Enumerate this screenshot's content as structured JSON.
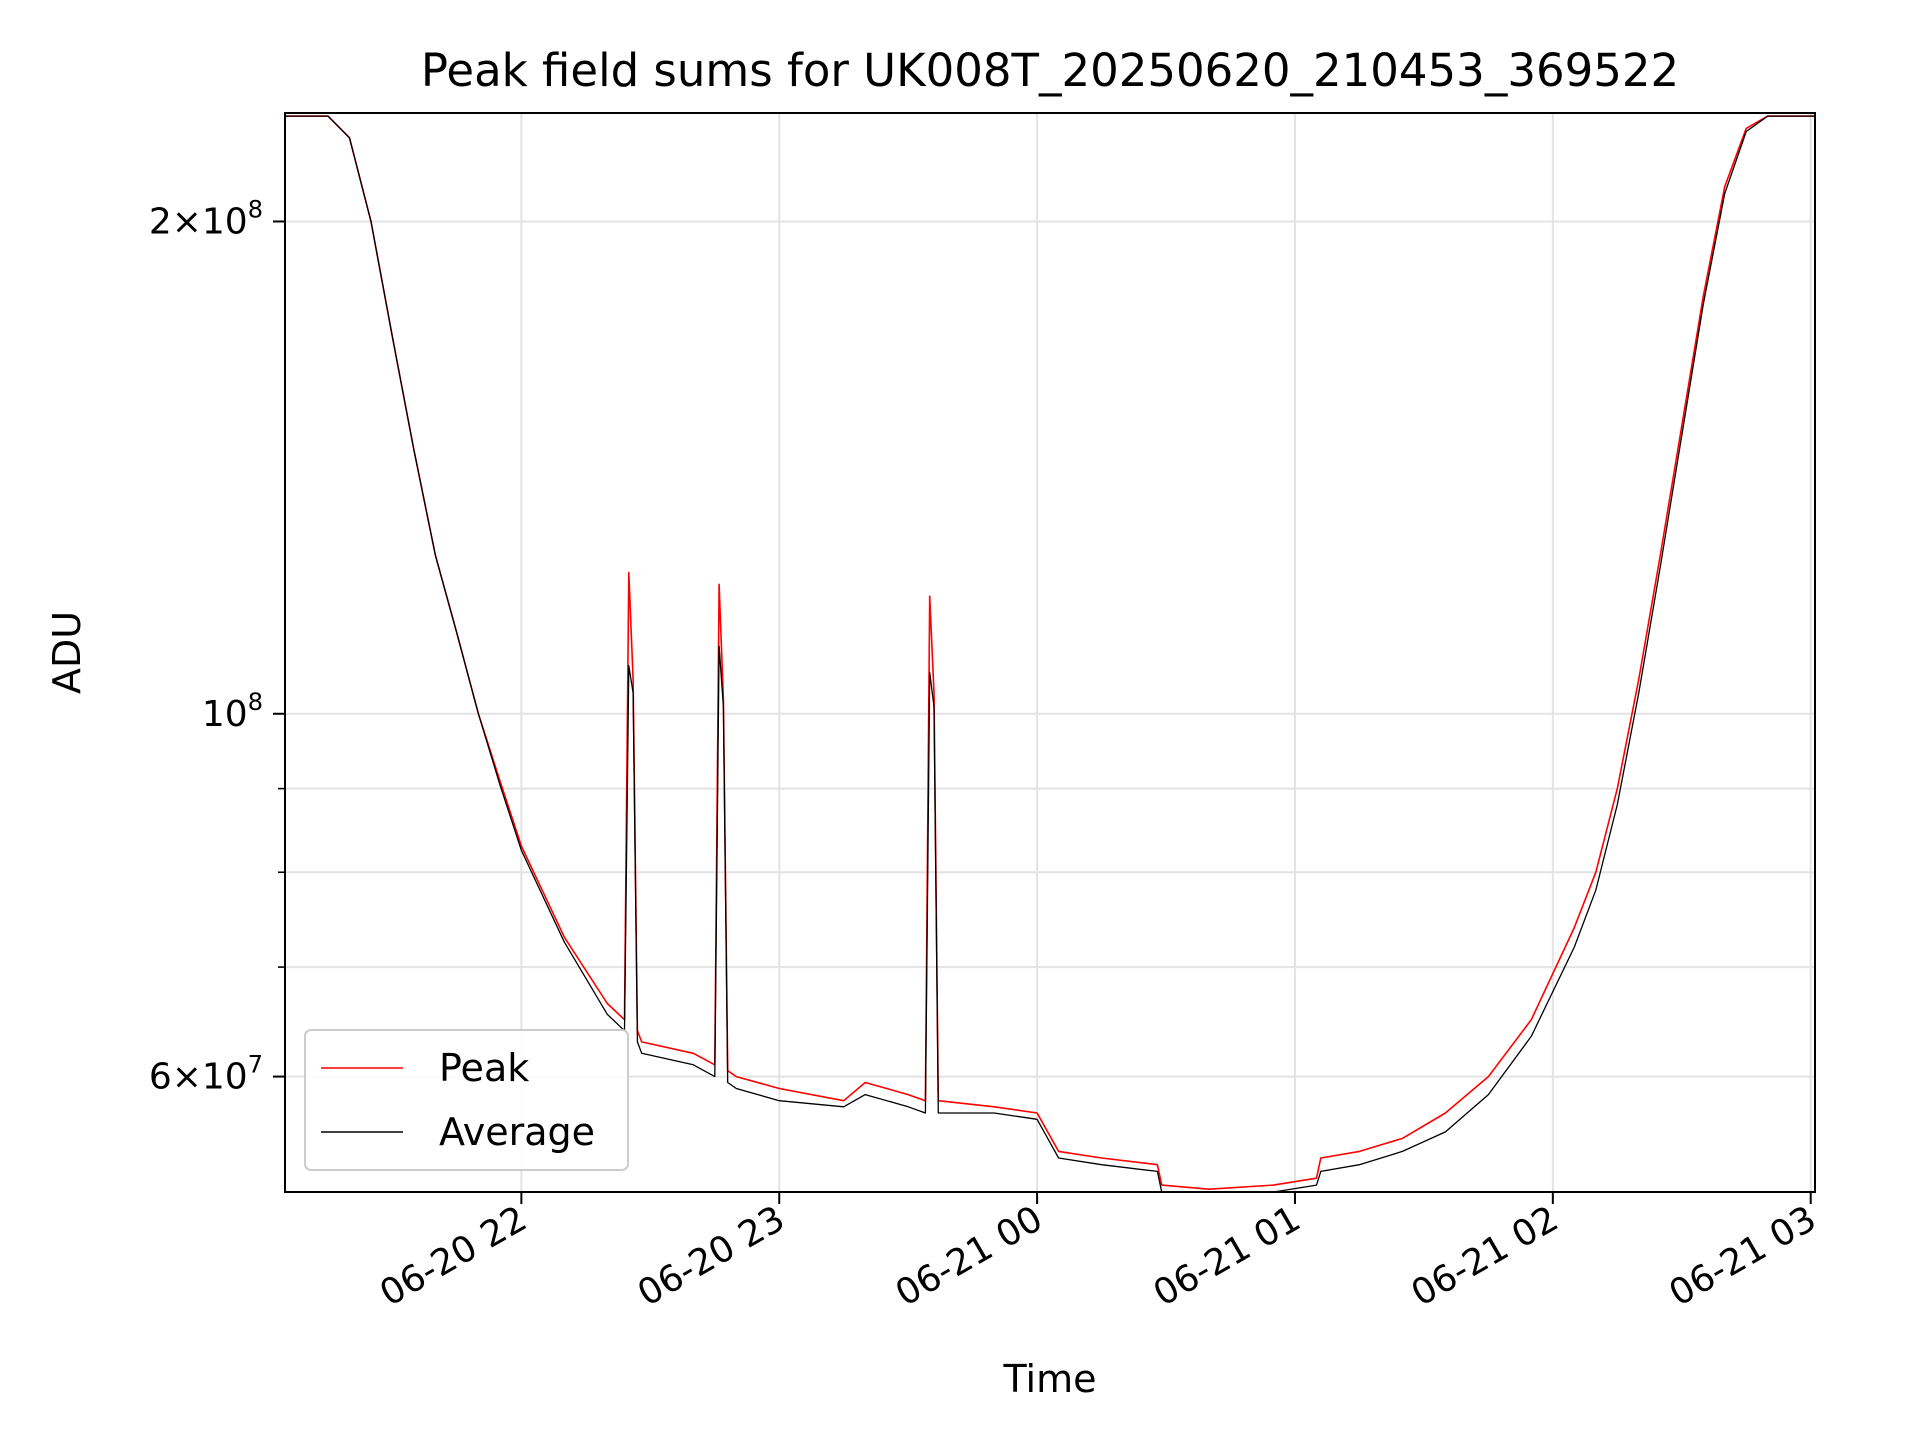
{
  "chart_data": {
    "type": "line",
    "title": "Peak field sums for UK008T_20250620_210453_369522",
    "xlabel": "Time",
    "ylabel": "ADU",
    "y_scale": "log",
    "grid": true,
    "legend_position": "lower-left",
    "xlim": [
      "2025-06-20 21:05",
      "2025-06-21 03:01"
    ],
    "ylim": [
      51000000,
      233000000
    ],
    "x_ticks": [
      "06-20 22",
      "06-20 23",
      "06-21 00",
      "06-21 01",
      "06-21 02",
      "06-21 03"
    ],
    "y_ticks": [
      {
        "value": 200000000,
        "base": "2×10",
        "exp": "8"
      },
      {
        "value": 100000000,
        "base": "10",
        "exp": "8"
      },
      {
        "value": 60000000,
        "base": "6×10",
        "exp": "7"
      }
    ],
    "y_minor_ticks": [
      70000000,
      80000000,
      90000000
    ],
    "series": [
      {
        "name": "Peak",
        "color": "#ff0000",
        "x": [
          "2025-06-20 21:05",
          "2025-06-20 21:15",
          "2025-06-20 21:20",
          "2025-06-20 21:25",
          "2025-06-20 21:30",
          "2025-06-20 21:35",
          "2025-06-20 21:40",
          "2025-06-20 21:45",
          "2025-06-20 21:50",
          "2025-06-20 21:55",
          "2025-06-20 22:00",
          "2025-06-20 22:10",
          "2025-06-20 22:20",
          "2025-06-20 22:24",
          "2025-06-20 22:25",
          "2025-06-20 22:26",
          "2025-06-20 22:27",
          "2025-06-20 22:28",
          "2025-06-20 22:40",
          "2025-06-20 22:45",
          "2025-06-20 22:46",
          "2025-06-20 22:47",
          "2025-06-20 22:48",
          "2025-06-20 22:50",
          "2025-06-20 23:00",
          "2025-06-20 23:15",
          "2025-06-20 23:20",
          "2025-06-20 23:30",
          "2025-06-20 23:34",
          "2025-06-20 23:35",
          "2025-06-20 23:36",
          "2025-06-20 23:37",
          "2025-06-20 23:50",
          "2025-06-21 00:00",
          "2025-06-21 00:05",
          "2025-06-21 00:15",
          "2025-06-21 00:28",
          "2025-06-21 00:29",
          "2025-06-21 00:40",
          "2025-06-21 00:55",
          "2025-06-21 01:05",
          "2025-06-21 01:06",
          "2025-06-21 01:15",
          "2025-06-21 01:25",
          "2025-06-21 01:35",
          "2025-06-21 01:45",
          "2025-06-21 01:55",
          "2025-06-21 02:05",
          "2025-06-21 02:10",
          "2025-06-21 02:15",
          "2025-06-21 02:20",
          "2025-06-21 02:25",
          "2025-06-21 02:30",
          "2025-06-21 02:35",
          "2025-06-21 02:40",
          "2025-06-21 02:45",
          "2025-06-21 02:50",
          "2025-06-21 03:01"
        ],
        "values": [
          232000000,
          232000000,
          225000000,
          200000000,
          170000000,
          145000000,
          125000000,
          112000000,
          100000000,
          91000000,
          83000000,
          73000000,
          66500000,
          65000000,
          122000000,
          105000000,
          64000000,
          63000000,
          62000000,
          61000000,
          120000000,
          102000000,
          60500000,
          60000000,
          59000000,
          58000000,
          59500000,
          58500000,
          58000000,
          118000000,
          103000000,
          58000000,
          57500000,
          57000000,
          54000000,
          53500000,
          53000000,
          51500000,
          51200000,
          51500000,
          52000000,
          53500000,
          54000000,
          55000000,
          57000000,
          60000000,
          65000000,
          74000000,
          80000000,
          90000000,
          105000000,
          125000000,
          150000000,
          180000000,
          210000000,
          228000000,
          232000000,
          232000000
        ]
      },
      {
        "name": "Average",
        "color": "#000000",
        "x": [
          "2025-06-20 21:05",
          "2025-06-20 21:15",
          "2025-06-20 21:20",
          "2025-06-20 21:25",
          "2025-06-20 21:30",
          "2025-06-20 21:35",
          "2025-06-20 21:40",
          "2025-06-20 21:45",
          "2025-06-20 21:50",
          "2025-06-20 21:55",
          "2025-06-20 22:00",
          "2025-06-20 22:10",
          "2025-06-20 22:20",
          "2025-06-20 22:24",
          "2025-06-20 22:25",
          "2025-06-20 22:26",
          "2025-06-20 22:27",
          "2025-06-20 22:28",
          "2025-06-20 22:40",
          "2025-06-20 22:45",
          "2025-06-20 22:46",
          "2025-06-20 22:47",
          "2025-06-20 22:48",
          "2025-06-20 22:50",
          "2025-06-20 23:00",
          "2025-06-20 23:15",
          "2025-06-20 23:20",
          "2025-06-20 23:30",
          "2025-06-20 23:34",
          "2025-06-20 23:35",
          "2025-06-20 23:36",
          "2025-06-20 23:37",
          "2025-06-20 23:50",
          "2025-06-21 00:00",
          "2025-06-21 00:05",
          "2025-06-21 00:15",
          "2025-06-21 00:28",
          "2025-06-21 00:29",
          "2025-06-21 00:40",
          "2025-06-21 00:55",
          "2025-06-21 01:05",
          "2025-06-21 01:06",
          "2025-06-21 01:15",
          "2025-06-21 01:25",
          "2025-06-21 01:35",
          "2025-06-21 01:45",
          "2025-06-21 01:55",
          "2025-06-21 02:05",
          "2025-06-21 02:10",
          "2025-06-21 02:15",
          "2025-06-21 02:20",
          "2025-06-21 02:25",
          "2025-06-21 02:30",
          "2025-06-21 02:35",
          "2025-06-21 02:40",
          "2025-06-21 02:45",
          "2025-06-21 02:50",
          "2025-06-21 03:01"
        ],
        "values": [
          232000000,
          232000000,
          225000000,
          200000000,
          170000000,
          145000000,
          125000000,
          112000000,
          100000000,
          90500000,
          82500000,
          72500000,
          65500000,
          64000000,
          107000000,
          103000000,
          63000000,
          62000000,
          61000000,
          60000000,
          110000000,
          101000000,
          59500000,
          59000000,
          58000000,
          57500000,
          58500000,
          57500000,
          57000000,
          106000000,
          101000000,
          57000000,
          57000000,
          56500000,
          53500000,
          53000000,
          52500000,
          51000000,
          50800000,
          51000000,
          51500000,
          52500000,
          53000000,
          54000000,
          55500000,
          58500000,
          63500000,
          72000000,
          78000000,
          88000000,
          103000000,
          123000000,
          148000000,
          178000000,
          208000000,
          227000000,
          232000000,
          232000000
        ]
      }
    ]
  }
}
